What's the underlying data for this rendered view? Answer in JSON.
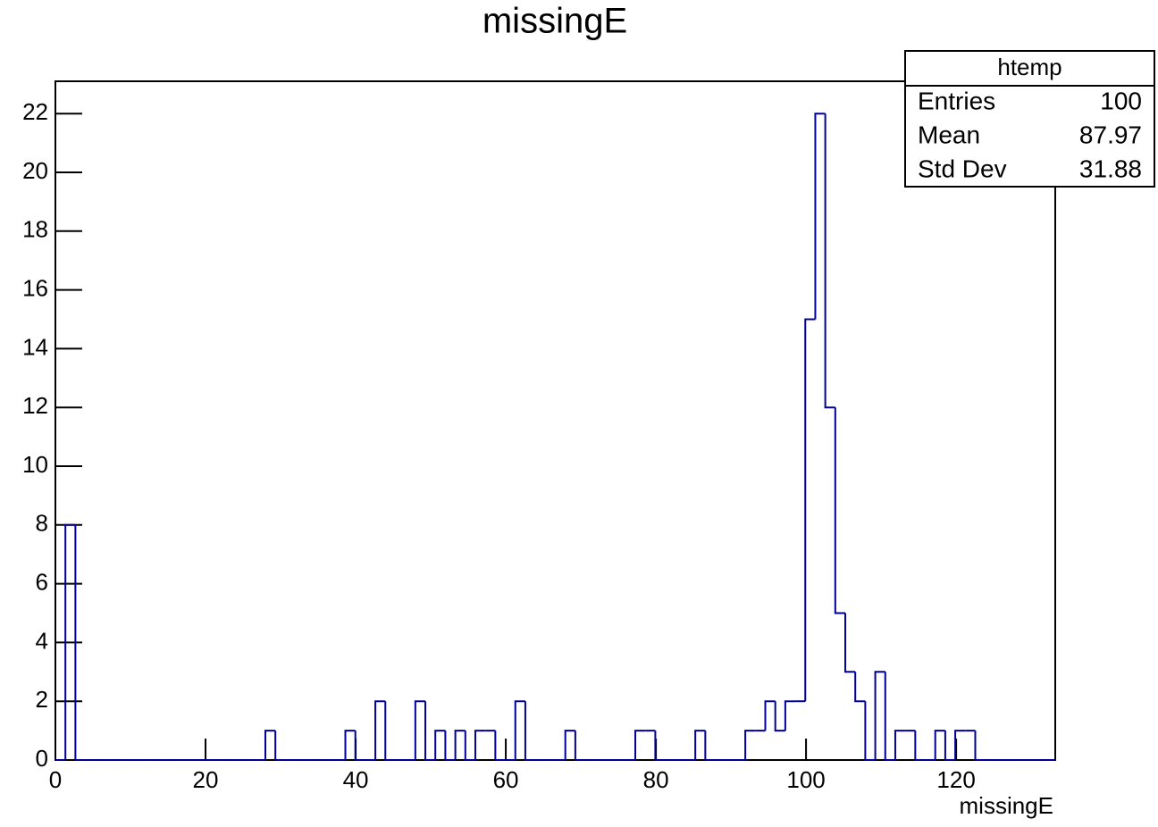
{
  "chart_data": {
    "type": "histogram",
    "title": "missingE",
    "x_label": "missingE",
    "color": "#000099",
    "bins": [
      0,
      1.332,
      2.664,
      3.996,
      5.328,
      6.66,
      7.992,
      9.324,
      10.656,
      11.988,
      13.32,
      14.652,
      15.984,
      17.316,
      18.648,
      19.98,
      21.312,
      22.644,
      23.976,
      25.308,
      26.64,
      27.972,
      29.304,
      30.636,
      31.968,
      33.3,
      34.632,
      35.964,
      37.296,
      38.628,
      39.96,
      41.292,
      42.624,
      43.956,
      45.288,
      46.62,
      47.952,
      49.284,
      50.616,
      51.948,
      53.28,
      54.612,
      55.944,
      57.276,
      58.608,
      59.94,
      61.272,
      62.604,
      63.936,
      65.268,
      66.6,
      67.932,
      69.264,
      70.596,
      71.928,
      73.26,
      74.592,
      75.924,
      77.256,
      78.588,
      79.92,
      81.252,
      82.584,
      83.916,
      85.248,
      86.58,
      87.912,
      89.244,
      90.576,
      91.908,
      93.24,
      94.572,
      95.904,
      97.236,
      98.568,
      99.9,
      101.232,
      102.564,
      103.896,
      105.228,
      106.56,
      107.892,
      109.224,
      110.556,
      111.888,
      113.22,
      114.552,
      115.884,
      117.216,
      118.548,
      119.88,
      121.212,
      122.544,
      123.876,
      125.208,
      126.54,
      127.872,
      129.204,
      130.536,
      131.868,
      133.2
    ],
    "values": [
      0,
      8,
      0,
      0,
      0,
      0,
      0,
      0,
      0,
      0,
      0,
      0,
      0,
      0,
      0,
      0,
      0,
      0,
      0,
      0,
      0,
      1,
      0,
      0,
      0,
      0,
      0,
      0,
      0,
      1,
      0,
      0,
      2,
      0,
      0,
      0,
      2,
      0,
      1,
      0,
      1,
      0,
      1,
      1,
      0,
      0,
      2,
      0,
      0,
      0,
      0,
      1,
      0,
      0,
      0,
      0,
      0,
      0,
      1,
      1,
      0,
      0,
      0,
      0,
      1,
      0,
      0,
      0,
      0,
      1,
      1,
      2,
      1,
      2,
      2,
      15,
      22,
      12,
      5,
      3,
      2,
      0,
      3,
      0,
      1,
      1,
      0,
      0,
      1,
      0,
      1,
      1,
      0,
      0,
      0,
      0,
      0,
      0,
      0,
      0
    ],
    "xlim": [
      0,
      133.2
    ],
    "xticks": [
      0,
      20,
      40,
      60,
      80,
      100,
      120
    ],
    "ylim": [
      0,
      23.1
    ],
    "yticks": [
      0,
      2,
      4,
      6,
      8,
      10,
      12,
      14,
      16,
      18,
      20,
      22
    ],
    "stats": {
      "title": "htemp",
      "rows": [
        [
          "Entries",
          100
        ],
        [
          "Mean",
          87.97
        ],
        [
          "Std Dev",
          31.88
        ]
      ]
    }
  }
}
